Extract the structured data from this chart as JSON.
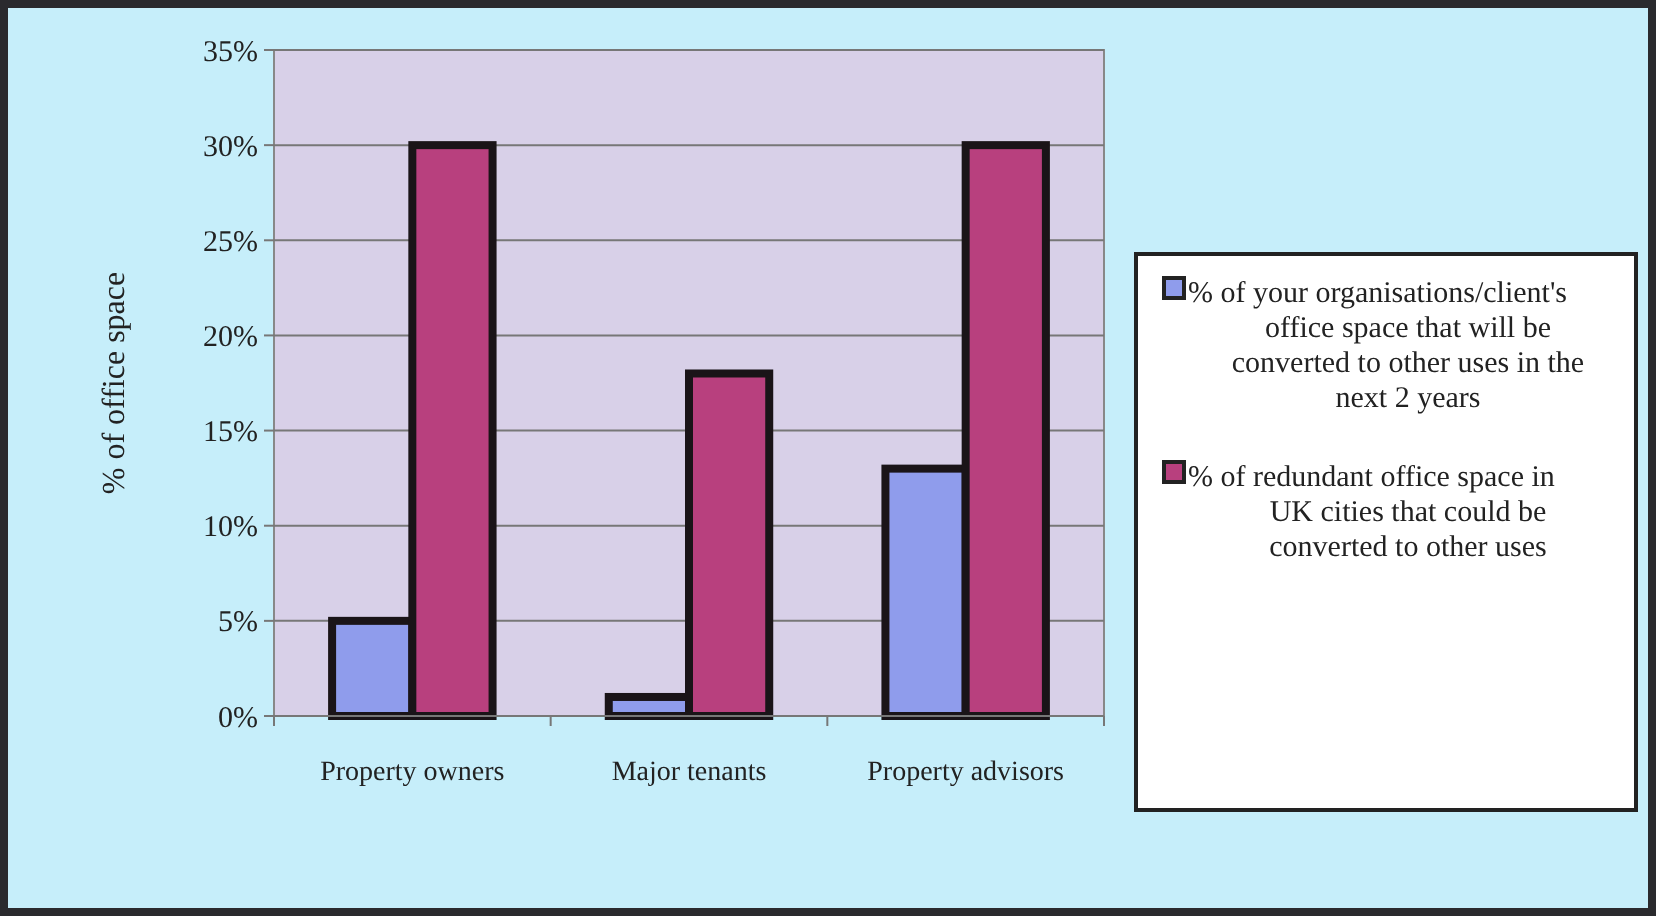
{
  "chart_data": {
    "type": "bar",
    "ylabel": "% of office space",
    "categories": [
      "Property owners",
      "Major tenants",
      "Property advisors"
    ],
    "series": [
      {
        "name": "% of your organisations/client's office space that will be converted to other uses in the next 2 years",
        "color": "#8f9cec",
        "values": [
          5,
          1,
          13
        ]
      },
      {
        "name": "% of redundant office space in UK cities that could be converted to other uses",
        "color": "#b8407e",
        "values": [
          30,
          18,
          30
        ]
      }
    ],
    "ylim": [
      0,
      35
    ],
    "yticks": [
      {
        "value": 0,
        "label": "0%"
      },
      {
        "value": 5,
        "label": "5%"
      },
      {
        "value": 10,
        "label": "10%"
      },
      {
        "value": 15,
        "label": "15%"
      },
      {
        "value": 20,
        "label": "20%"
      },
      {
        "value": 25,
        "label": "25%"
      },
      {
        "value": 30,
        "label": "30%"
      },
      {
        "value": 35,
        "label": "35%"
      }
    ],
    "grid": "y",
    "legend": "right"
  }
}
